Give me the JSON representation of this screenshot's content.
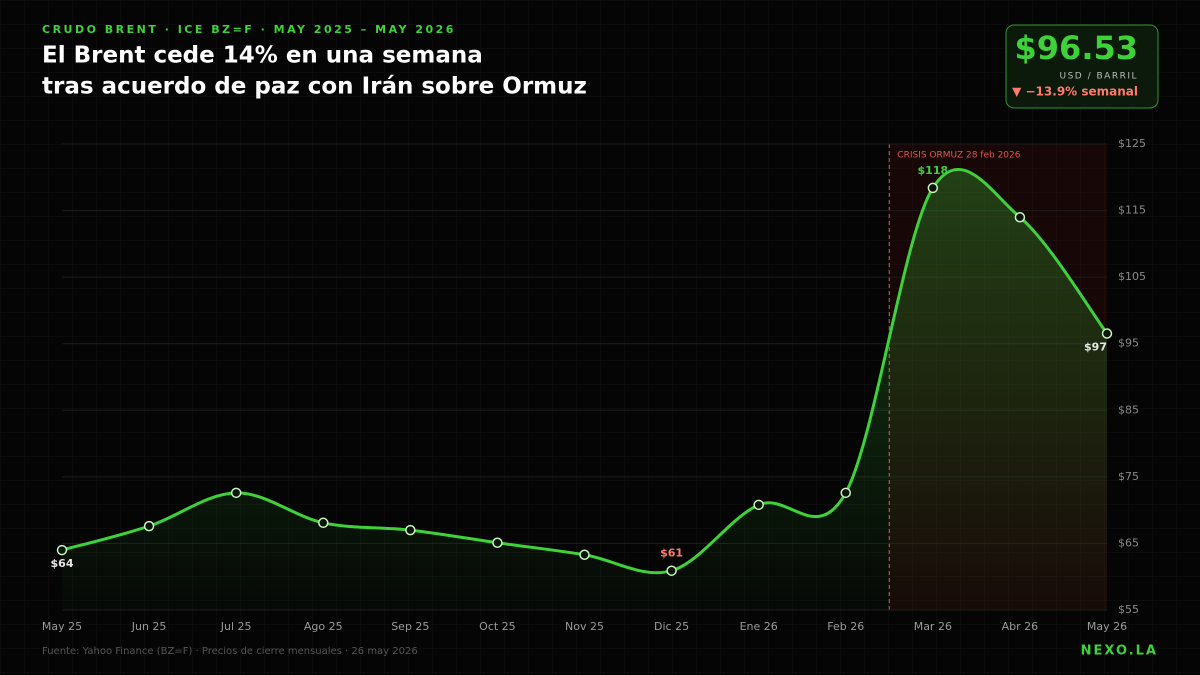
{
  "chart_data": {
    "type": "line",
    "kicker": "CRUDO BRENT · ICE BZ=F · MAY 2025 – MAY 2026",
    "title_lines": [
      "El Brent cede 14% en una semana",
      "tras acuerdo de paz con Irán sobre Ormuz"
    ],
    "price": "$96.53",
    "price_unit": "USD / BARRIL",
    "price_change": "▼ −13.9% semanal",
    "annotation": "CRISIS ORMUZ  28 feb 2026",
    "source": "Fuente: Yahoo Finance (BZ=F) · Precios de cierre mensuales · 26 may 2026",
    "brand": "NEXO.LA",
    "categories": [
      "May 25",
      "Jun 25",
      "Jul 25",
      "Ago 25",
      "Sep 25",
      "Oct 25",
      "Nov 25",
      "Dic 25",
      "Ene 26",
      "Feb 26",
      "Mar 26",
      "Abr 26",
      "May 26"
    ],
    "values": [
      64.0,
      67.6,
      72.6,
      68.1,
      67.0,
      65.1,
      63.3,
      60.9,
      70.8,
      72.6,
      118.4,
      114.0,
      96.53
    ],
    "value_labels": [
      "$64",
      null,
      null,
      null,
      null,
      null,
      null,
      "$61",
      null,
      null,
      "$118",
      null,
      "$97"
    ],
    "color": "#3fd13a",
    "ylim": [
      55,
      125
    ],
    "yticks": [
      {
        "value": 55,
        "label": "$55"
      },
      {
        "value": 65,
        "label": "$65"
      },
      {
        "value": 75,
        "label": "$75"
      },
      {
        "value": 85,
        "label": "$85"
      },
      {
        "value": 95,
        "label": "$95"
      },
      {
        "value": 105,
        "label": "$105"
      },
      {
        "value": 115,
        "label": "$115"
      },
      {
        "value": 125,
        "label": "$125"
      }
    ],
    "grid": true
  }
}
